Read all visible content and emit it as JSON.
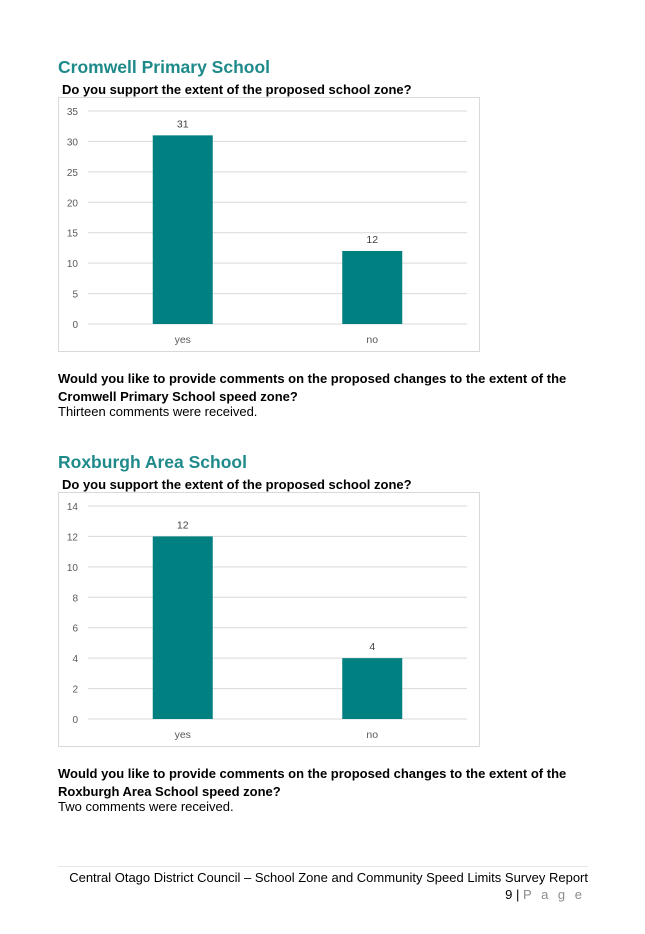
{
  "sections": [
    {
      "heading": "Cromwell Primary School",
      "question": "Do you support the extent of the proposed school zone?",
      "comments_question": "Would you like to provide comments on the proposed changes to the extent of the Cromwell Primary School speed zone?",
      "comments_answer": "Thirteen comments were received."
    },
    {
      "heading": "Roxburgh Area School",
      "question": "Do you support the extent of the proposed school zone?",
      "comments_question": "Would you like to provide comments on the proposed changes to the extent of the Roxburgh Area School speed zone?",
      "comments_answer": "Two comments were received."
    }
  ],
  "chart_data": [
    {
      "type": "bar",
      "categories": [
        "yes",
        "no"
      ],
      "values": [
        31,
        12
      ],
      "data_labels": [
        "31",
        "12"
      ],
      "ylim": [
        0,
        35
      ],
      "yticks": [
        0,
        5,
        10,
        15,
        20,
        25,
        30,
        35
      ],
      "grid": true,
      "legend": "none",
      "bar_color": "#008080"
    },
    {
      "type": "bar",
      "categories": [
        "yes",
        "no"
      ],
      "values": [
        12,
        4
      ],
      "data_labels": [
        "12",
        "4"
      ],
      "ylim": [
        0,
        14
      ],
      "yticks": [
        0,
        2,
        4,
        6,
        8,
        10,
        12,
        14
      ],
      "grid": true,
      "legend": "none",
      "bar_color": "#008080"
    }
  ],
  "footer": {
    "title": "Central Otago District Council – School Zone and Community Speed Limits Survey Report",
    "page_number": "9",
    "separator": "|",
    "page_word": "P a g e"
  }
}
